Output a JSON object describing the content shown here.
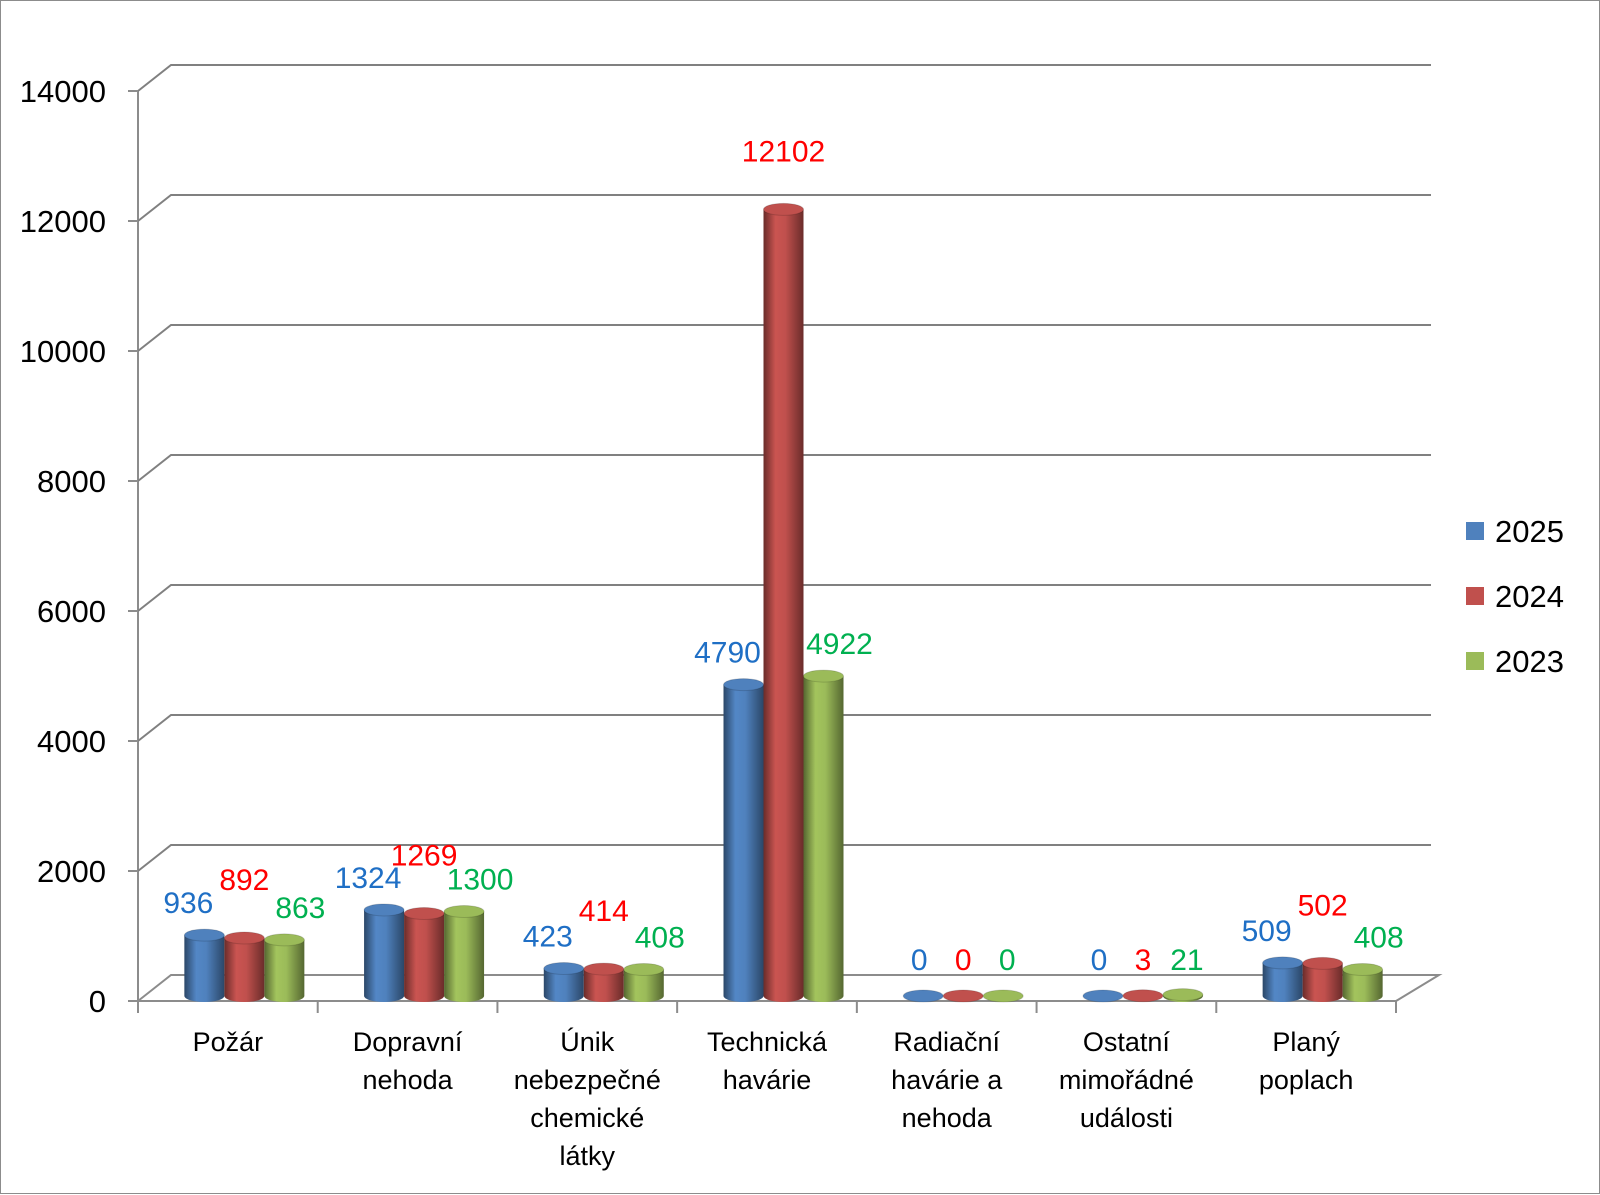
{
  "chart_data": {
    "type": "bar",
    "style": "3d-cylinder",
    "title": "",
    "xlabel": "",
    "ylabel": "",
    "ylim": [
      0,
      14000
    ],
    "yticks": [
      0,
      2000,
      4000,
      6000,
      8000,
      10000,
      12000,
      14000
    ],
    "grid": true,
    "legend_position": "right",
    "categories": [
      [
        "Požár"
      ],
      [
        "Dopravní",
        "nehoda"
      ],
      [
        "Únik",
        "nebezpečné",
        "chemické",
        "látky"
      ],
      [
        "Technická",
        "havárie"
      ],
      [
        "Radiační",
        "havárie a",
        "nehoda"
      ],
      [
        "Ostatní",
        "mimořádné",
        "události"
      ],
      [
        "Planý",
        "poplach"
      ]
    ],
    "series": [
      {
        "name": "2025",
        "color": "#4f81bd",
        "label_color": "#1f6fc5",
        "values": [
          936,
          1324,
          423,
          4790,
          0,
          0,
          509
        ]
      },
      {
        "name": "2024",
        "color": "#c0504d",
        "label_color": "#ff0000",
        "values": [
          892,
          1269,
          414,
          12102,
          0,
          3,
          502
        ]
      },
      {
        "name": "2023",
        "color": "#9bbb59",
        "label_color": "#00b050",
        "values": [
          863,
          1300,
          408,
          4922,
          0,
          21,
          408
        ]
      }
    ]
  }
}
